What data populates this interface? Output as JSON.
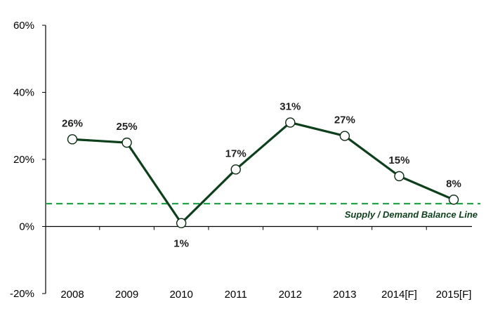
{
  "chart_data": {
    "type": "line",
    "title": "",
    "xlabel": "",
    "ylabel": "",
    "categories": [
      "2008",
      "2009",
      "2010",
      "2011",
      "2012",
      "2013",
      "2014[F]",
      "2015[F]"
    ],
    "series": [
      {
        "values": [
          26,
          25,
          1,
          17,
          31,
          27,
          15,
          8
        ],
        "value_labels": [
          "26%",
          "25%",
          "1%",
          "17%",
          "31%",
          "27%",
          "15%",
          "8%"
        ],
        "color": "#0c3f1a"
      }
    ],
    "ylim": [
      -20,
      60
    ],
    "yticks": [
      -20,
      0,
      20,
      40,
      60
    ],
    "ytick_labels": [
      "-20%",
      "0%",
      "20%",
      "40%",
      "60%"
    ],
    "grid": false,
    "reference_line": {
      "label": "Supply / Demand Balance Line",
      "value": 6.8,
      "color": "#22a34a",
      "style": "dashed"
    }
  }
}
